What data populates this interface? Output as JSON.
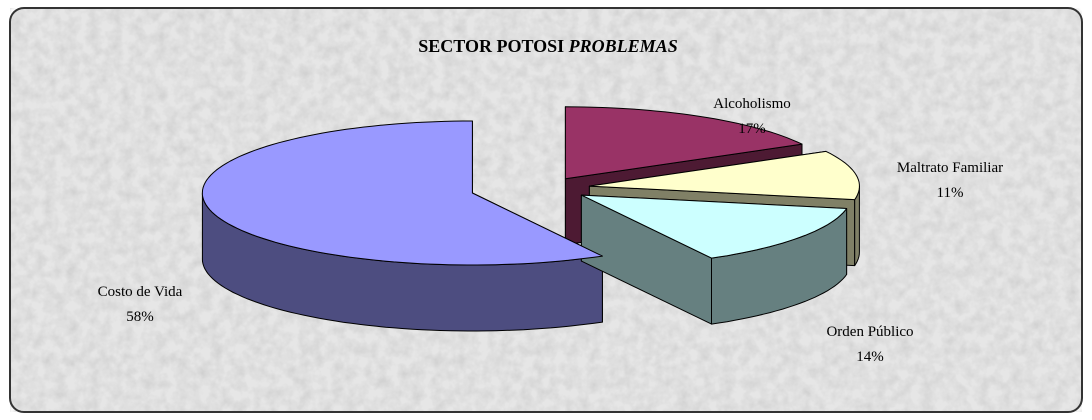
{
  "chart_data": {
    "type": "pie3d",
    "title": "SECTOR POTOSI",
    "title_emphasis": "PROBLEMAS",
    "categories": [
      "Alcoholismo",
      "Maltrato Familiar",
      "Orden Público",
      "Costo de Vida"
    ],
    "values": [
      17,
      11,
      14,
      58
    ],
    "value_labels": [
      "17%",
      "11%",
      "14%",
      "58%"
    ],
    "colors": [
      "#993366",
      "#ffffcc",
      "#ccffff",
      "#9999ff"
    ]
  }
}
